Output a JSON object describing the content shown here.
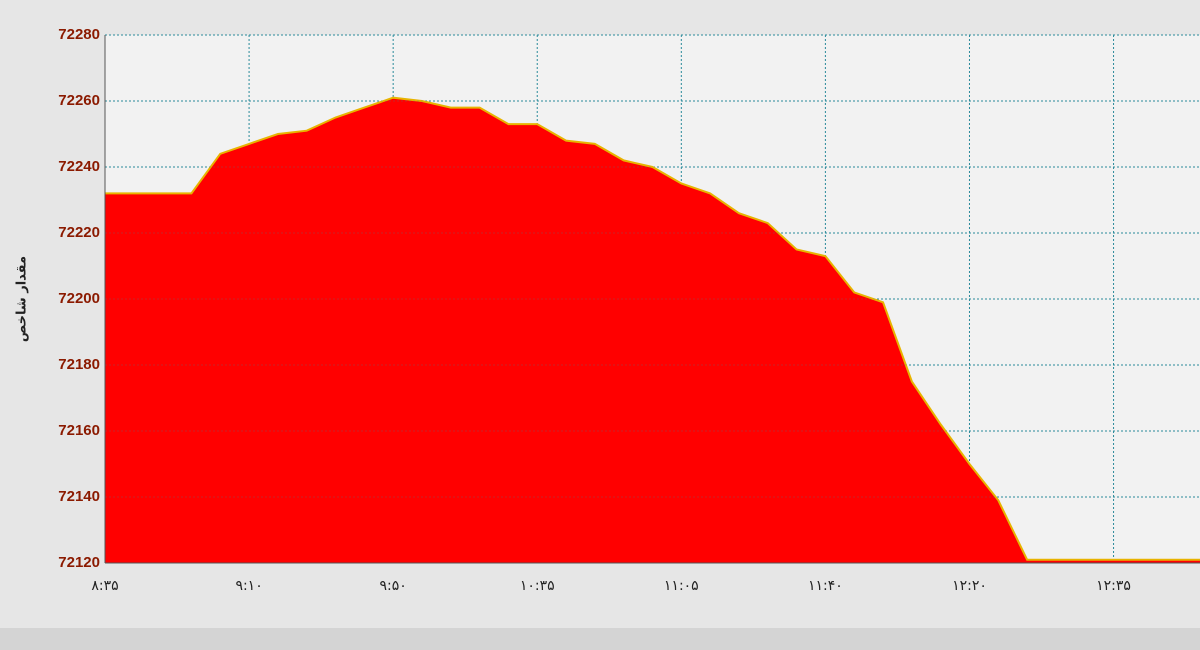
{
  "chart_data": {
    "type": "area",
    "y_label": "مقدار شاخص",
    "categories": [
      "۸:۳۵",
      null,
      null,
      null,
      null,
      "۹:۱۰",
      null,
      null,
      null,
      null,
      "۹:۵۰",
      null,
      null,
      null,
      null,
      "۱۰:۳۵",
      null,
      null,
      null,
      null,
      "۱۱:۰۵",
      null,
      null,
      null,
      null,
      "۱۱:۴۰",
      null,
      null,
      null,
      null,
      "۱۲:۲۰",
      null,
      null,
      null,
      null,
      "۱۲:۳۵",
      null,
      null,
      null
    ],
    "values": [
      72232,
      72232,
      72232,
      72232,
      72244,
      72247,
      72250,
      72251,
      72255,
      72258,
      72261,
      72260,
      72258,
      72258,
      72253,
      72253,
      72248,
      72247,
      72242,
      72240,
      72235,
      72232,
      72226,
      72223,
      72215,
      72213,
      72202,
      72199,
      72175,
      72162,
      72150,
      72139,
      72121,
      72121,
      72121,
      72121,
      72121,
      72121,
      72121
    ],
    "color": "#ff0000",
    "line_color": "#e8b400",
    "ylim": [
      72120,
      72280
    ],
    "yticks": [
      72120,
      72140,
      72160,
      72180,
      72200,
      72220,
      72240,
      72260,
      72280
    ],
    "grid": true
  }
}
